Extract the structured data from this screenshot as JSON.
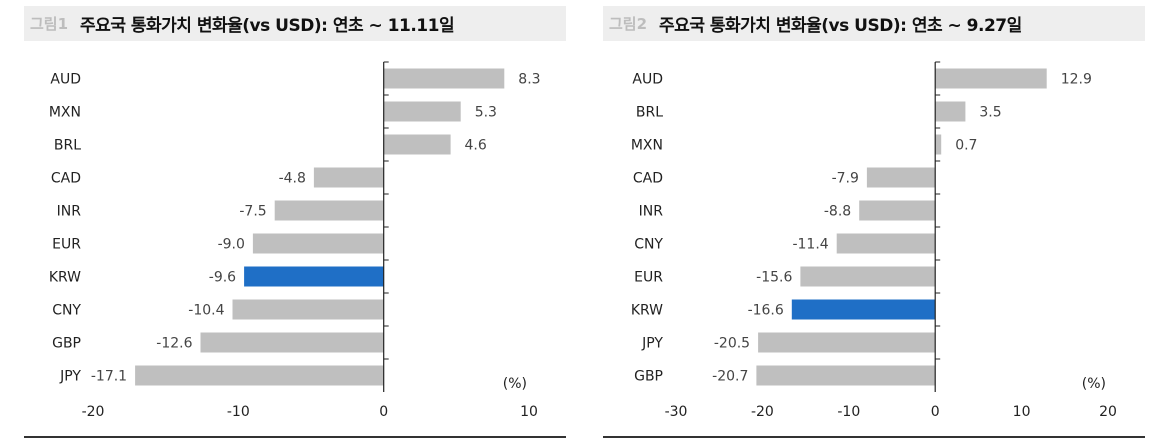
{
  "charts": [
    {
      "figure_tag": "그림1",
      "title": "주요국 통화가치 변화율(vs USD): 연초 ~ 11.11일"
    },
    {
      "figure_tag": "그림2",
      "title": "주요국 통화가치 변화율(vs USD): 연초 ~ 9.27일"
    }
  ],
  "colors": {
    "bar": "#bfbfbf",
    "highlight": "#1f6fc6",
    "axis": "#222222"
  },
  "chart_data": [
    {
      "type": "bar",
      "orientation": "horizontal",
      "title": "주요국 통화가치 변화율(vs USD): 연초 ~ 11.11일",
      "categories": [
        "AUD",
        "MXN",
        "BRL",
        "CAD",
        "INR",
        "EUR",
        "KRW",
        "CNY",
        "GBP",
        "JPY"
      ],
      "values": [
        8.3,
        5.3,
        4.6,
        -4.8,
        -7.5,
        -9.0,
        -9.6,
        -10.4,
        -12.6,
        -17.1
      ],
      "value_labels": [
        "8.3",
        "5.3",
        "4.6",
        "-4.8",
        "-7.5",
        "-9.0",
        "-9.6",
        "-10.4",
        "-12.6",
        "-17.1"
      ],
      "highlight": "KRW",
      "unit": "(%)",
      "xlim": [
        -20,
        10
      ],
      "xticks": [
        -20,
        -10,
        0,
        10
      ],
      "grid": false
    },
    {
      "type": "bar",
      "orientation": "horizontal",
      "title": "주요국 통화가치 변화율(vs USD): 연초 ~ 9.27일",
      "categories": [
        "AUD",
        "BRL",
        "MXN",
        "CAD",
        "INR",
        "CNY",
        "EUR",
        "KRW",
        "JPY",
        "GBP"
      ],
      "values": [
        12.9,
        3.5,
        0.7,
        -7.9,
        -8.8,
        -11.4,
        -15.6,
        -16.6,
        -20.5,
        -20.7
      ],
      "value_labels": [
        "12.9",
        "3.5",
        "0.7",
        "-7.9",
        "-8.8",
        "-11.4",
        "-15.6",
        "-16.6",
        "-20.5",
        "-20.7"
      ],
      "highlight": "KRW",
      "unit": "(%)",
      "xlim": [
        -30,
        20
      ],
      "xticks": [
        -30,
        -20,
        -10,
        0,
        10,
        20
      ],
      "grid": false
    }
  ]
}
